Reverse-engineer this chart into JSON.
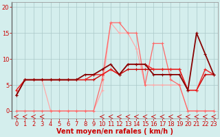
{
  "xlabel": "Vent moyen/en rafales ( km/h )",
  "xlim": [
    -0.5,
    23.5
  ],
  "ylim": [
    -1.5,
    21
  ],
  "background_color": "#d4eeed",
  "grid_color": "#aac8c8",
  "x_ticks": [
    0,
    1,
    2,
    3,
    4,
    5,
    6,
    7,
    8,
    9,
    10,
    11,
    12,
    13,
    14,
    15,
    16,
    17,
    18,
    19,
    20,
    21,
    22,
    23
  ],
  "y_ticks": [
    0,
    5,
    10,
    15,
    20
  ],
  "series": [
    {
      "x": [
        0,
        1,
        2,
        3,
        4,
        5,
        6,
        7,
        8,
        9,
        10,
        11,
        12,
        13,
        14,
        15,
        16,
        17,
        18,
        19,
        20,
        21,
        22,
        23
      ],
      "y": [
        4,
        6,
        6,
        6,
        0,
        0,
        0,
        0,
        0,
        0,
        4,
        17,
        15,
        15,
        12,
        5,
        5,
        5,
        5,
        5,
        0,
        0,
        0,
        0
      ],
      "color": "#ffaaaa",
      "lw": 0.9,
      "zorder": 2
    },
    {
      "x": [
        0,
        1,
        2,
        3,
        4,
        5,
        6,
        7,
        8,
        9,
        10,
        11,
        12,
        13,
        14,
        15,
        16,
        17,
        18,
        19,
        20,
        21,
        22,
        23
      ],
      "y": [
        3,
        6,
        6,
        6,
        6,
        6,
        6,
        6,
        6,
        6,
        7,
        8,
        7,
        8,
        8,
        8,
        8,
        8,
        8,
        8,
        4,
        4,
        7,
        7
      ],
      "color": "#cc0000",
      "lw": 1.0,
      "zorder": 4
    },
    {
      "x": [
        0,
        1,
        2,
        3,
        4,
        5,
        6,
        7,
        8,
        9,
        10,
        11,
        12,
        13,
        14,
        15,
        16,
        17,
        18,
        19,
        20,
        21,
        22,
        23
      ],
      "y": [
        4,
        6,
        6,
        6,
        6,
        6,
        6,
        6,
        6,
        7,
        7,
        8,
        7,
        9,
        9,
        9,
        8,
        8,
        8,
        8,
        4,
        4,
        8,
        7
      ],
      "color": "#ee2222",
      "lw": 1.0,
      "zorder": 5
    },
    {
      "x": [
        0,
        1,
        2,
        3,
        4,
        5,
        6,
        7,
        8,
        9,
        10,
        11,
        12,
        13,
        14,
        15,
        16,
        17,
        18,
        19,
        20,
        21,
        22,
        23
      ],
      "y": [
        3,
        6,
        6,
        6,
        6,
        6,
        6,
        6,
        7,
        7,
        8,
        9,
        7,
        9,
        9,
        9,
        7,
        7,
        7,
        7,
        4,
        15,
        11,
        7
      ],
      "color": "#880000",
      "lw": 1.3,
      "zorder": 6
    },
    {
      "x": [
        0,
        1,
        2,
        3,
        4,
        5,
        6,
        7,
        8,
        9,
        10,
        11,
        12,
        13,
        14,
        15,
        16,
        17,
        18,
        19,
        20,
        21,
        22,
        23
      ],
      "y": [
        0,
        0,
        0,
        0,
        0,
        0,
        0,
        0,
        0,
        0,
        6,
        17,
        17,
        15,
        15,
        5,
        13,
        13,
        6,
        5,
        0,
        0,
        0,
        0
      ],
      "color": "#ff6666",
      "lw": 0.9,
      "zorder": 3
    }
  ],
  "xlabel_color": "#cc0000",
  "tick_color": "#cc0000",
  "xlabel_fontsize": 7,
  "tick_fontsize": 6,
  "marker": "+",
  "markersize": 3
}
